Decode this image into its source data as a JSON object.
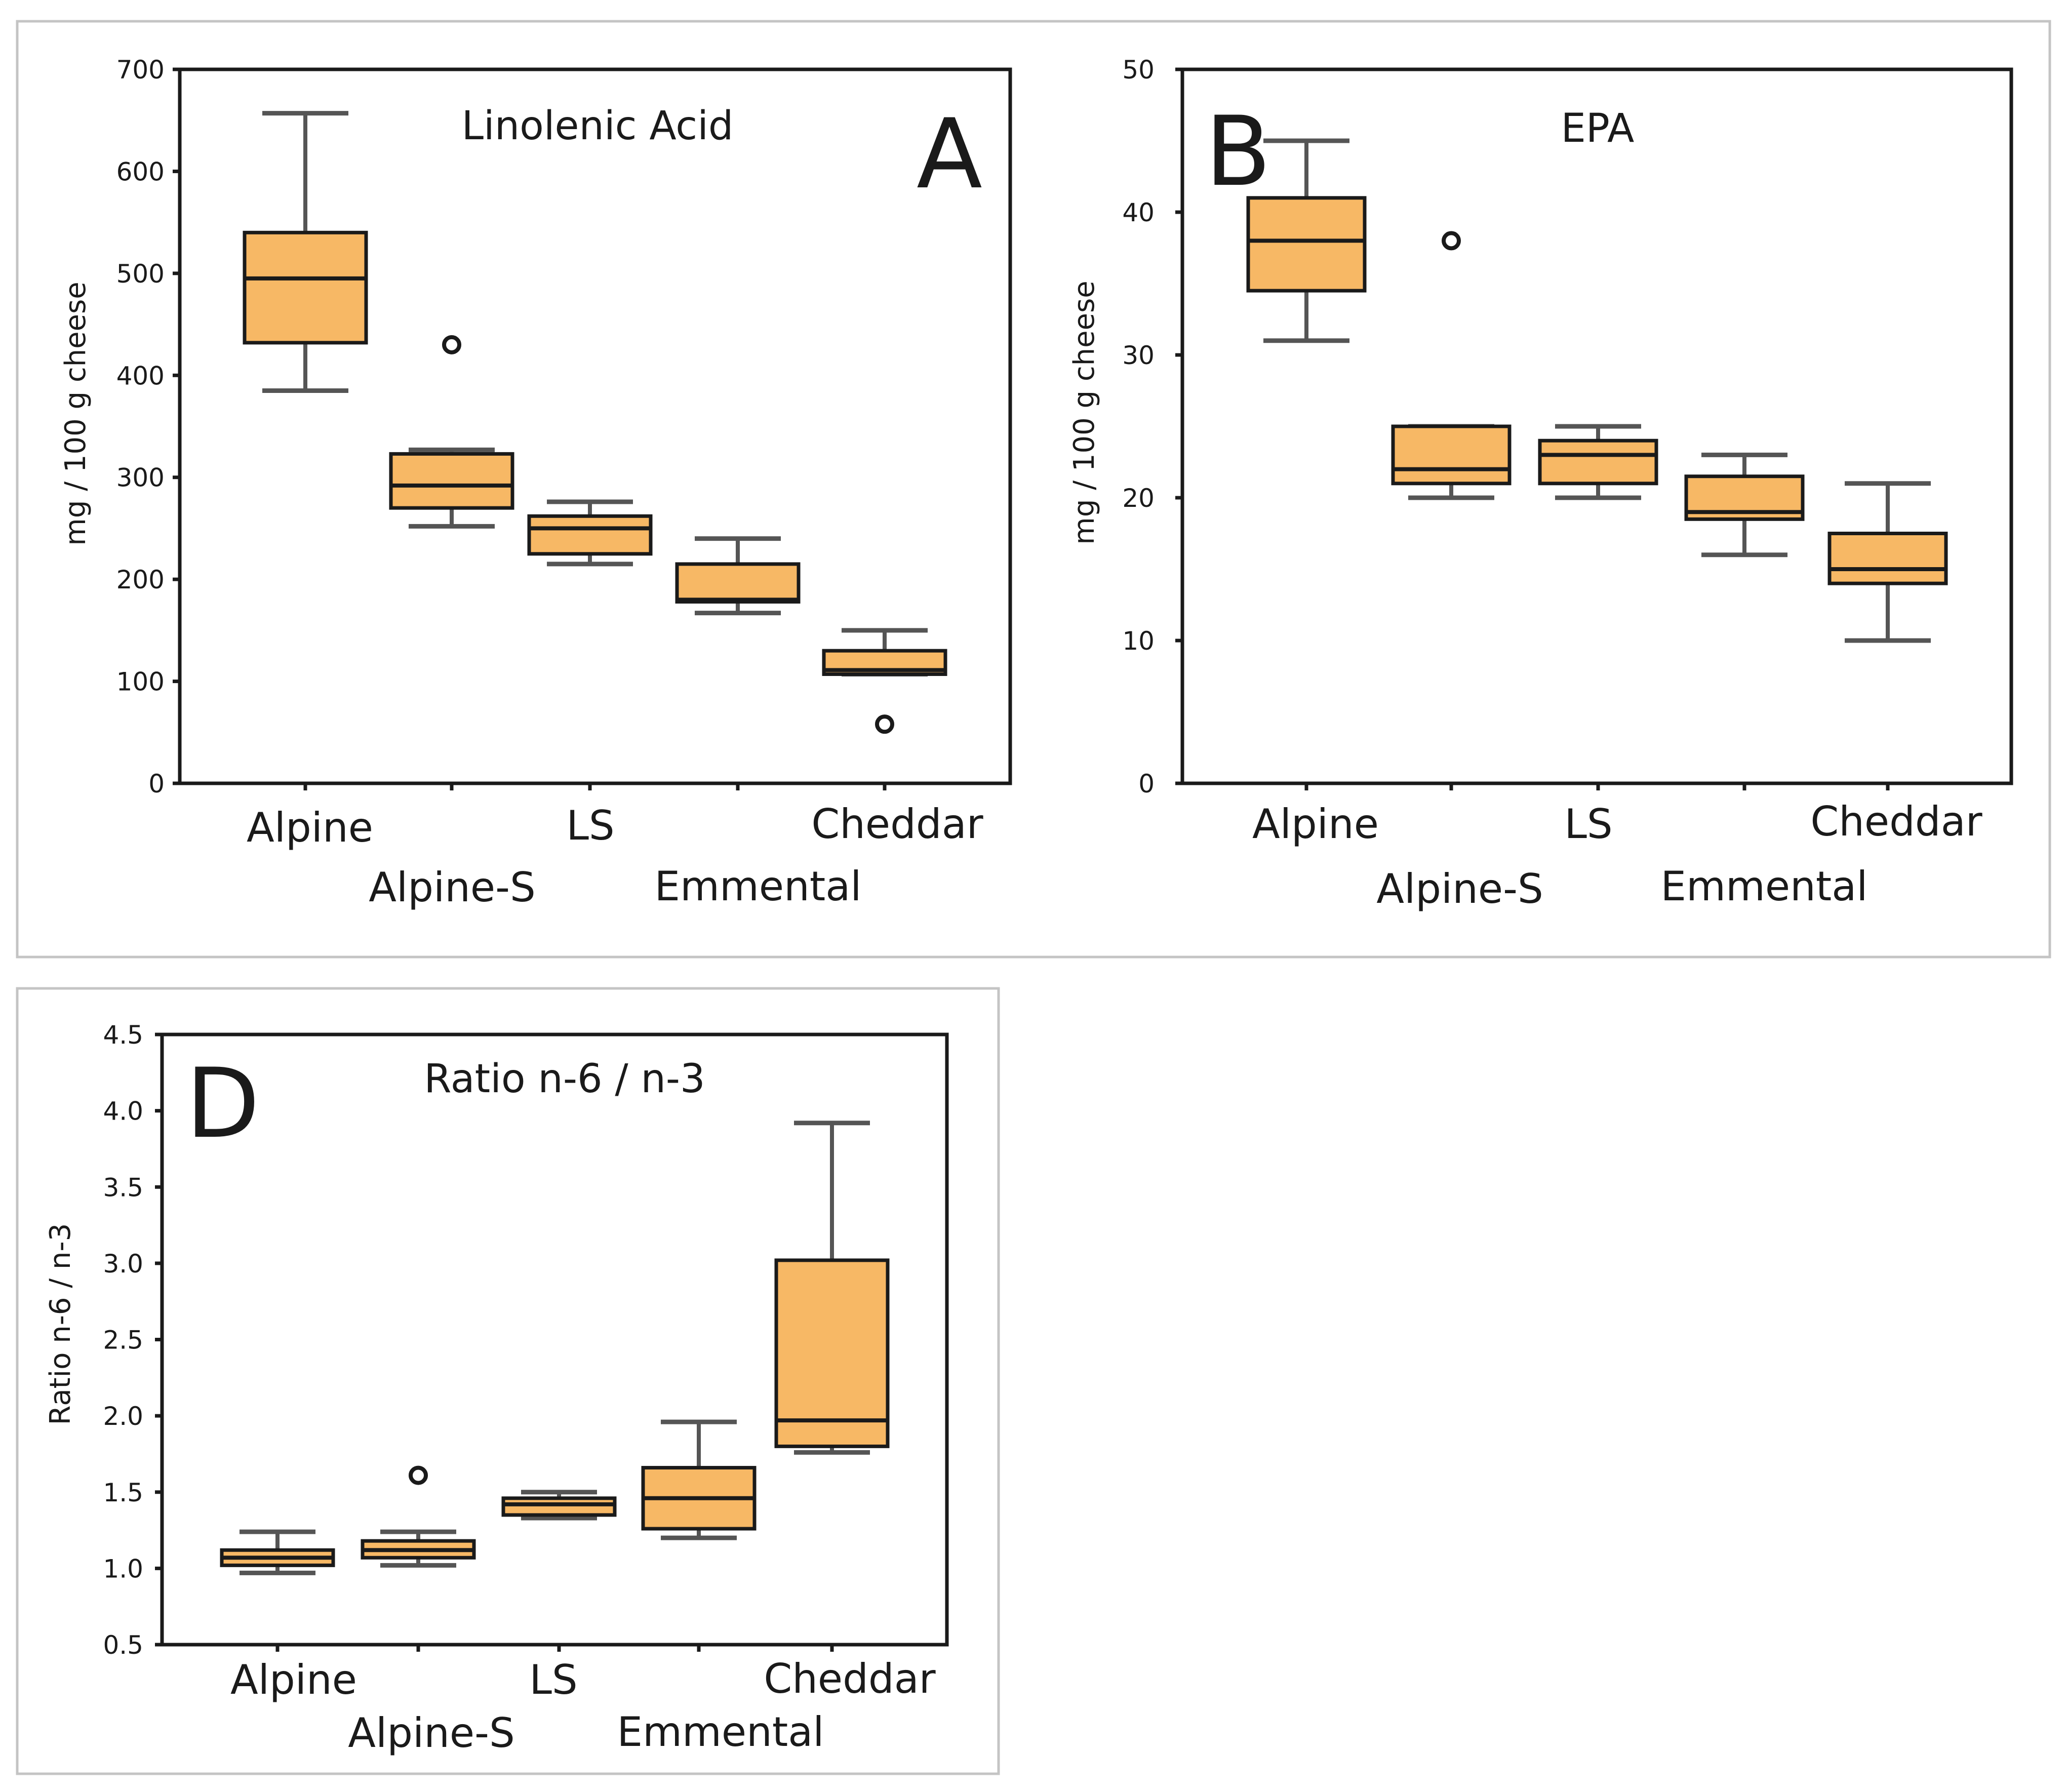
{
  "colors": {
    "box_fill": "#F7B865",
    "box_edge": "#1a1a1a",
    "whisker": "#555555",
    "frame": "#c4c4c4",
    "axis": "#1a1a1a"
  },
  "chart_data": [
    {
      "type": "box",
      "panel_letter": "A",
      "title": "Linolenic Acid",
      "xlabel": "",
      "ylabel": "mg / 100 g cheese",
      "ylim": [
        0,
        700
      ],
      "yticks": [
        0,
        100,
        200,
        300,
        400,
        500,
        600,
        700
      ],
      "categories": [
        "Alpine",
        "Alpine-S",
        "LS",
        "Emmental",
        "Cheddar"
      ],
      "boxes": [
        {
          "category": "Alpine",
          "whisker_low": 385,
          "q1": 432,
          "median": 495,
          "q3": 540,
          "whisker_high": 657,
          "outliers": []
        },
        {
          "category": "Alpine-S",
          "whisker_low": 252,
          "q1": 270,
          "median": 292,
          "q3": 323,
          "whisker_high": 327,
          "outliers": [
            430
          ]
        },
        {
          "category": "LS",
          "whisker_low": 215,
          "q1": 225,
          "median": 250,
          "q3": 262,
          "whisker_high": 276,
          "outliers": []
        },
        {
          "category": "Emmental",
          "whisker_low": 167,
          "q1": 178,
          "median": 180,
          "q3": 215,
          "whisker_high": 240,
          "outliers": []
        },
        {
          "category": "Cheddar",
          "whisker_low": 107,
          "q1": 107,
          "median": 111,
          "q3": 130,
          "whisker_high": 150,
          "outliers": [
            58
          ]
        }
      ]
    },
    {
      "type": "box",
      "panel_letter": "B",
      "title": "EPA",
      "xlabel": "",
      "ylabel": "mg / 100 g cheese",
      "ylim": [
        0,
        50
      ],
      "yticks": [
        0,
        10,
        20,
        30,
        40,
        50
      ],
      "categories": [
        "Alpine",
        "Alpine-S",
        "LS",
        "Emmental",
        "Cheddar"
      ],
      "boxes": [
        {
          "category": "Alpine",
          "whisker_low": 31,
          "q1": 34.5,
          "median": 38,
          "q3": 41,
          "whisker_high": 45,
          "outliers": []
        },
        {
          "category": "Alpine-S",
          "whisker_low": 20,
          "q1": 21,
          "median": 22,
          "q3": 25,
          "whisker_high": 25,
          "outliers": [
            38
          ]
        },
        {
          "category": "LS",
          "whisker_low": 20,
          "q1": 21,
          "median": 23,
          "q3": 24,
          "whisker_high": 25,
          "outliers": []
        },
        {
          "category": "Emmental",
          "whisker_low": 16,
          "q1": 18.5,
          "median": 19,
          "q3": 21.5,
          "whisker_high": 23,
          "outliers": []
        },
        {
          "category": "Cheddar",
          "whisker_low": 10,
          "q1": 14,
          "median": 15,
          "q3": 17.5,
          "whisker_high": 21,
          "outliers": []
        }
      ]
    },
    {
      "type": "box",
      "panel_letter": "D",
      "title": "Ratio n-6 / n-3",
      "xlabel": "",
      "ylabel": "Ratio n-6 / n-3",
      "ylim": [
        0.5,
        4.5
      ],
      "yticks": [
        "0.5",
        "1.0",
        "1.5",
        "2.0",
        "2.5",
        "3.0",
        "3.5",
        "4.0",
        "4.5"
      ],
      "categories": [
        "Alpine",
        "Alpine-S",
        "LS",
        "Emmental",
        "Cheddar"
      ],
      "boxes": [
        {
          "category": "Alpine",
          "whisker_low": 0.97,
          "q1": 1.02,
          "median": 1.07,
          "q3": 1.12,
          "whisker_high": 1.24,
          "outliers": []
        },
        {
          "category": "Alpine-S",
          "whisker_low": 1.02,
          "q1": 1.07,
          "median": 1.12,
          "q3": 1.18,
          "whisker_high": 1.24,
          "outliers": [
            1.61
          ]
        },
        {
          "category": "LS",
          "whisker_low": 1.33,
          "q1": 1.35,
          "median": 1.42,
          "q3": 1.46,
          "whisker_high": 1.5,
          "outliers": []
        },
        {
          "category": "Emmental",
          "whisker_low": 1.2,
          "q1": 1.26,
          "median": 1.46,
          "q3": 1.66,
          "whisker_high": 1.96,
          "outliers": []
        },
        {
          "category": "Cheddar",
          "whisker_low": 1.76,
          "q1": 1.8,
          "median": 1.97,
          "q3": 3.02,
          "whisker_high": 3.92,
          "outliers": []
        }
      ]
    }
  ]
}
